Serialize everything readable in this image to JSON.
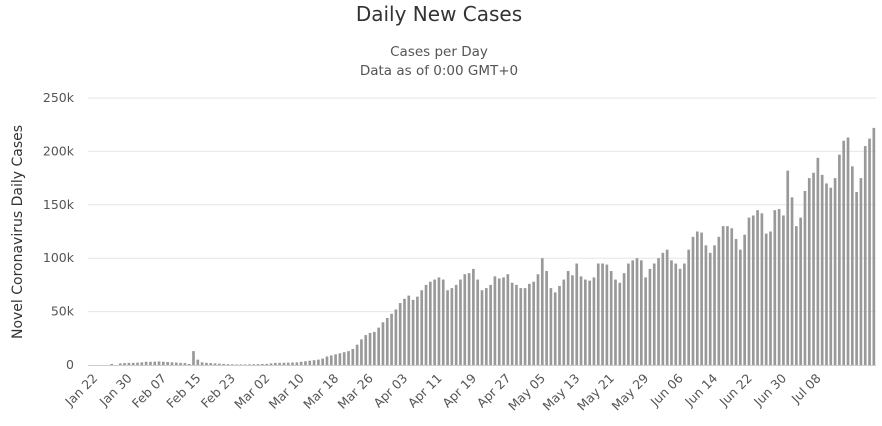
{
  "chart_data": {
    "type": "bar",
    "title": "Daily New Cases",
    "subtitle_line1": "Cases per Day",
    "subtitle_line2": "Data as of 0:00 GMT+0",
    "ylabel": "Novel Coronavirus Daily Cases",
    "xlabel": "",
    "ylim": [
      0,
      250000
    ],
    "y_ticks": [
      0,
      50000,
      100000,
      150000,
      200000,
      250000
    ],
    "y_tick_labels": [
      "0",
      "50k",
      "100k",
      "150k",
      "200k",
      "250k"
    ],
    "x_tick_labels": [
      "Jan 22",
      "Jan 30",
      "Feb 07",
      "Feb 15",
      "Feb 23",
      "Mar 02",
      "Mar 10",
      "Mar 18",
      "Mar 26",
      "Apr 03",
      "Apr 11",
      "Apr 19",
      "Apr 27",
      "May 05",
      "May 13",
      "May 21",
      "May 29",
      "Jun 06",
      "Jun 14",
      "Jun 22",
      "Jun 30",
      "Jul 08"
    ],
    "grid": true,
    "legend": "none",
    "bar_color": "#999999",
    "start_date": "Jan 22",
    "series": [
      {
        "values": [
          0,
          0,
          0,
          0,
          0,
          1000,
          0,
          1500,
          1800,
          2000,
          2000,
          2200,
          2500,
          3000,
          3000,
          3200,
          3300,
          3000,
          2800,
          2500,
          2300,
          2000,
          1800,
          1000,
          13000,
          5000,
          2500,
          2000,
          1800,
          1500,
          1200,
          1000,
          800,
          600,
          500,
          500,
          500,
          600,
          700,
          800,
          900,
          1000,
          1500,
          2000,
          2000,
          2100,
          2200,
          2300,
          2500,
          3000,
          3500,
          4000,
          4500,
          5000,
          6000,
          8000,
          9000,
          10000,
          11000,
          12000,
          13000,
          15000,
          19000,
          24000,
          28000,
          30000,
          31000,
          35000,
          40000,
          44000,
          48000,
          52000,
          58000,
          62000,
          65000,
          61000,
          64000,
          70000,
          75000,
          78000,
          80000,
          82000,
          80000,
          70000,
          72000,
          75000,
          80000,
          85000,
          86000,
          90000,
          80000,
          70000,
          72000,
          75000,
          83000,
          81000,
          82000,
          85000,
          77000,
          75000,
          72000,
          72000,
          76000,
          78000,
          85000,
          100000,
          88000,
          72000,
          68000,
          74000,
          80000,
          88000,
          84000,
          95000,
          83000,
          80000,
          79000,
          82000,
          95000,
          95000,
          94000,
          88000,
          80000,
          77000,
          86000,
          95000,
          98000,
          100000,
          98000,
          82000,
          90000,
          95000,
          100000,
          105000,
          108000,
          98000,
          95000,
          90000,
          95000,
          108000,
          120000,
          125000,
          124000,
          112000,
          105000,
          112000,
          120000,
          130000,
          130000,
          128000,
          118000,
          108000,
          122000,
          138000,
          140000,
          145000,
          142000,
          123000,
          125000,
          145000,
          146000,
          140000,
          182000,
          157000,
          130000,
          138000,
          163000,
          175000,
          180000,
          194000,
          178000,
          170000,
          166000,
          175000,
          197000,
          210000,
          213000,
          186000,
          162000,
          175000,
          205000,
          212000,
          222000
        ]
      }
    ]
  }
}
